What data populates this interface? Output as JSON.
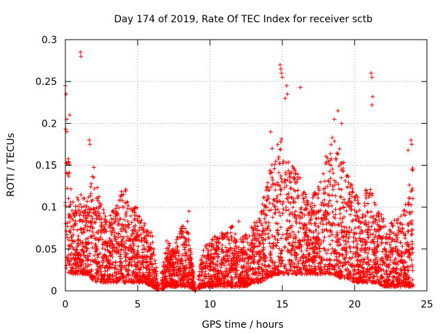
{
  "chart_data": {
    "type": "scatter",
    "title": "Day 174 of 2019, Rate Of TEC Index for receiver sctb",
    "xlabel": "GPS time / hours",
    "ylabel": "ROTI / TECUs",
    "xlim": [
      0,
      25
    ],
    "ylim": [
      0,
      0.3
    ],
    "xticks": [
      0,
      5,
      10,
      15,
      20,
      25
    ],
    "xtick_labels": [
      "0",
      "5",
      "10",
      "15",
      "20",
      "25"
    ],
    "yticks": [
      0,
      0.05,
      0.1,
      0.15,
      0.2,
      0.25,
      0.3
    ],
    "ytick_labels": [
      "0",
      "0.05",
      "0.1",
      "0.15",
      "0.2",
      "0.25",
      "0.3"
    ],
    "grid": true,
    "marker": "+",
    "series": [
      {
        "name": "ROTI",
        "color": "#ff0000",
        "envelope": {
          "x": [
            0.0,
            0.3,
            0.6,
            1.0,
            1.5,
            2.0,
            2.5,
            3.0,
            3.5,
            4.0,
            4.5,
            5.0,
            5.5,
            6.0,
            6.5,
            7.0,
            7.5,
            8.0,
            8.5,
            9.0,
            9.5,
            10.0,
            10.5,
            11.0,
            11.5,
            12.0,
            12.5,
            13.0,
            13.5,
            14.0,
            14.5,
            15.0,
            15.5,
            16.0,
            16.5,
            17.0,
            17.5,
            18.0,
            18.5,
            19.0,
            19.5,
            20.0,
            20.5,
            21.0,
            21.5,
            22.0,
            22.5,
            23.0,
            23.5,
            24.0
          ],
          "upper": [
            0.22,
            0.15,
            0.1,
            0.12,
            0.11,
            0.15,
            0.1,
            0.09,
            0.1,
            0.13,
            0.11,
            0.1,
            0.08,
            0.07,
            0.0,
            0.06,
            0.05,
            0.08,
            0.07,
            0.0,
            0.05,
            0.06,
            0.07,
            0.07,
            0.08,
            0.06,
            0.07,
            0.08,
            0.09,
            0.14,
            0.17,
            0.19,
            0.15,
            0.16,
            0.12,
            0.11,
            0.13,
            0.16,
            0.19,
            0.17,
            0.14,
            0.12,
            0.11,
            0.13,
            0.1,
            0.09,
            0.08,
            0.09,
            0.1,
            0.15
          ],
          "lower": [
            0.015,
            0.02,
            0.02,
            0.02,
            0.02,
            0.01,
            0.01,
            0.01,
            0.01,
            0.01,
            0.01,
            0.01,
            0.01,
            0.005,
            0.0,
            0.005,
            0.005,
            0.005,
            0.005,
            0.0,
            0.005,
            0.005,
            0.005,
            0.005,
            0.005,
            0.005,
            0.005,
            0.01,
            0.01,
            0.015,
            0.02,
            0.02,
            0.02,
            0.02,
            0.02,
            0.02,
            0.02,
            0.02,
            0.02,
            0.015,
            0.015,
            0.01,
            0.01,
            0.01,
            0.01,
            0.005,
            0.005,
            0.005,
            0.005,
            0.005
          ],
          "gaps": [
            [
              6.45,
              6.65
            ],
            [
              9.0,
              9.2
            ]
          ]
        },
        "outliers": [
          {
            "x": 1.05,
            "y": 0.285
          },
          {
            "x": 1.08,
            "y": 0.28
          },
          {
            "x": 0.0,
            "y": 0.245
          },
          {
            "x": 0.05,
            "y": 0.235
          },
          {
            "x": 0.1,
            "y": 0.205
          },
          {
            "x": 0.1,
            "y": 0.19
          },
          {
            "x": 0.3,
            "y": 0.21
          },
          {
            "x": 1.65,
            "y": 0.18
          },
          {
            "x": 1.7,
            "y": 0.175
          },
          {
            "x": 8.55,
            "y": 0.095
          },
          {
            "x": 8.45,
            "y": 0.083
          },
          {
            "x": 14.85,
            "y": 0.27
          },
          {
            "x": 14.9,
            "y": 0.265
          },
          {
            "x": 14.95,
            "y": 0.26
          },
          {
            "x": 15.0,
            "y": 0.255
          },
          {
            "x": 15.3,
            "y": 0.245
          },
          {
            "x": 15.35,
            "y": 0.235
          },
          {
            "x": 16.25,
            "y": 0.243
          },
          {
            "x": 15.2,
            "y": 0.23
          },
          {
            "x": 14.3,
            "y": 0.17
          },
          {
            "x": 14.2,
            "y": 0.19
          },
          {
            "x": 21.15,
            "y": 0.26
          },
          {
            "x": 21.2,
            "y": 0.255
          },
          {
            "x": 21.25,
            "y": 0.232
          },
          {
            "x": 21.2,
            "y": 0.222
          },
          {
            "x": 18.85,
            "y": 0.215
          },
          {
            "x": 18.6,
            "y": 0.205
          },
          {
            "x": 19.1,
            "y": 0.2
          },
          {
            "x": 23.9,
            "y": 0.18
          },
          {
            "x": 23.95,
            "y": 0.175
          },
          {
            "x": 23.7,
            "y": 0.168
          },
          {
            "x": 12.0,
            "y": 0.083
          },
          {
            "x": 13.0,
            "y": 0.07
          }
        ]
      }
    ]
  }
}
